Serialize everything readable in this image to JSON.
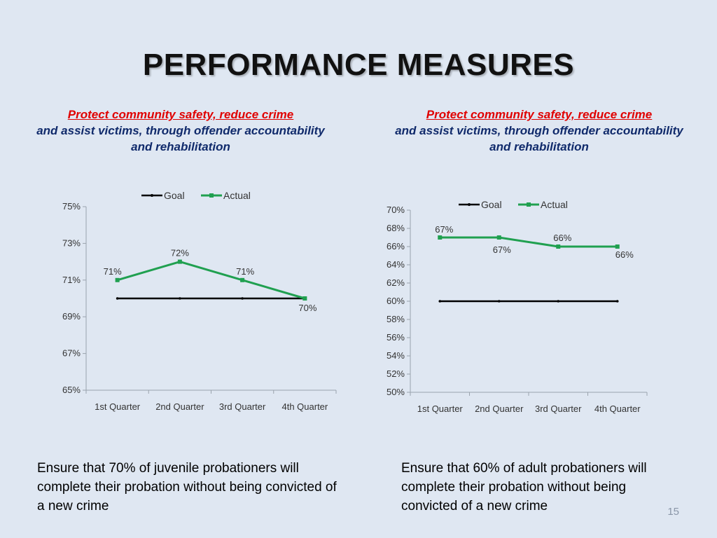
{
  "slide": {
    "title": "PERFORMANCE MEASURES",
    "page_number": "15",
    "left": {
      "subtitle_red": "Protect community safety, reduce crime",
      "subtitle_blue": "and assist victims, through offender accountability and rehabilitation",
      "caption": "Ensure that 70% of juvenile probationers will complete their probation without being convicted of a new crime"
    },
    "right": {
      "subtitle_red": "Protect community safety, reduce crime",
      "subtitle_blue": "and assist victims, through offender accountability and rehabilitation",
      "caption": "Ensure that 60% of adult probationers will complete their probation without being convicted of a new crime"
    }
  },
  "colors": {
    "goal": "#000000",
    "actual": "#20a050",
    "axis": "#9aa3ad"
  },
  "chart_data": [
    {
      "type": "line",
      "title": "",
      "xlabel": "",
      "ylabel": "",
      "categories": [
        "1st Quarter",
        "2nd Quarter",
        "3rd Quarter",
        "4th Quarter"
      ],
      "ylim": [
        65,
        75
      ],
      "yticks": [
        65,
        67,
        69,
        71,
        73,
        75
      ],
      "ytick_labels": [
        "65%",
        "67%",
        "69%",
        "71%",
        "73%",
        "75%"
      ],
      "legend_position": "top",
      "grid": false,
      "series": [
        {
          "name": "Goal",
          "values": [
            70,
            70,
            70,
            70
          ],
          "data_labels": []
        },
        {
          "name": "Actual",
          "values": [
            71,
            72,
            71,
            70
          ],
          "data_labels": [
            "71%",
            "72%",
            "71%",
            "70%"
          ]
        }
      ]
    },
    {
      "type": "line",
      "title": "",
      "xlabel": "",
      "ylabel": "",
      "categories": [
        "1st Quarter",
        "2nd Quarter",
        "3rd Quarter",
        "4th Quarter"
      ],
      "ylim": [
        50,
        70
      ],
      "yticks": [
        50,
        52,
        54,
        56,
        58,
        60,
        62,
        64,
        66,
        68,
        70
      ],
      "ytick_labels": [
        "50%",
        "52%",
        "54%",
        "56%",
        "58%",
        "60%",
        "62%",
        "64%",
        "66%",
        "68%",
        "70%"
      ],
      "legend_position": "top",
      "grid": false,
      "series": [
        {
          "name": "Goal",
          "values": [
            60,
            60,
            60,
            60
          ],
          "data_labels": []
        },
        {
          "name": "Actual",
          "values": [
            67,
            67,
            66,
            66
          ],
          "data_labels": [
            "67%",
            "67%",
            "66%",
            "66%"
          ]
        }
      ]
    }
  ]
}
